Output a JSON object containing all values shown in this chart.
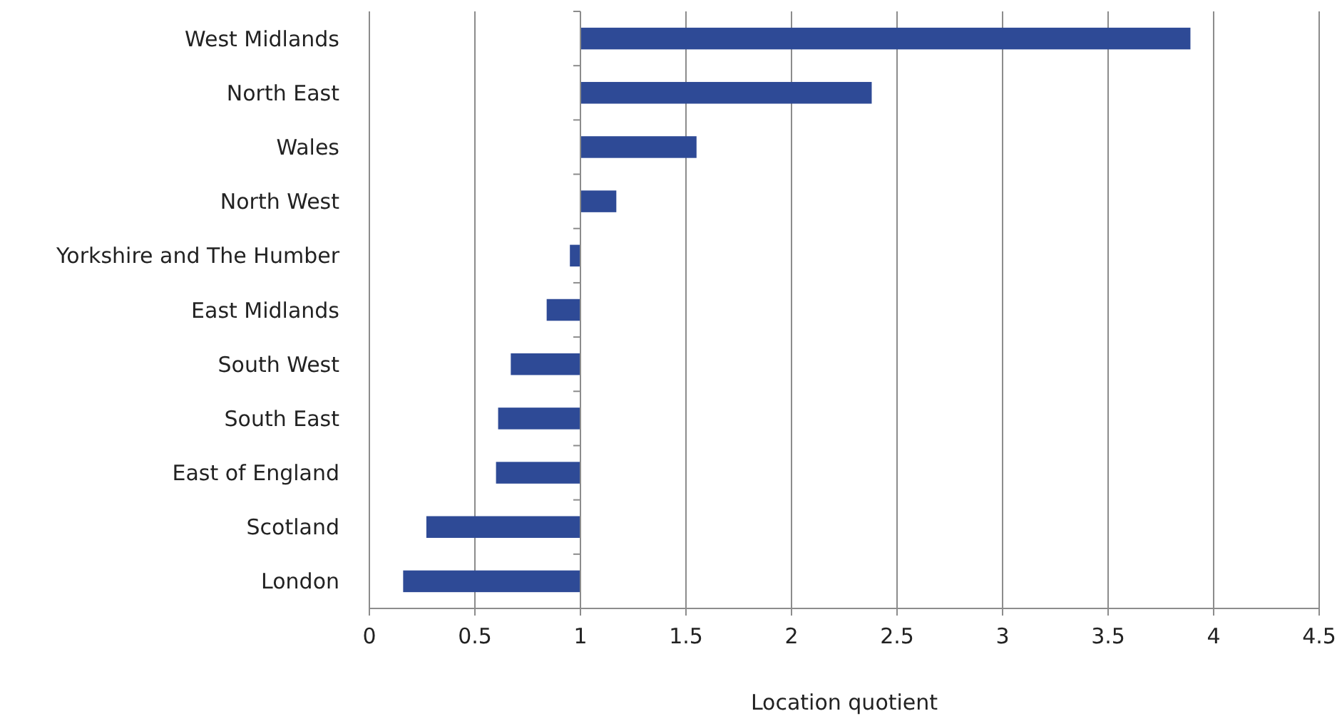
{
  "chart_data": {
    "type": "bar",
    "orientation": "horizontal",
    "xlabel": "Location quotient",
    "categories": [
      "West Midlands",
      "North East",
      "Wales",
      "North West",
      "Yorkshire and The Humber",
      "East Midlands",
      "South West",
      "South East",
      "East of England",
      "Scotland",
      "London"
    ],
    "base": [
      1,
      1,
      1,
      1,
      1,
      1,
      1,
      1,
      1,
      1,
      1
    ],
    "values": [
      2.89,
      1.38,
      0.55,
      0.17,
      -0.05,
      -0.16,
      -0.33,
      -0.39,
      -0.4,
      -0.73,
      -0.84
    ],
    "color": "#2e4a96",
    "xlim": [
      0,
      4.5
    ],
    "xticks": [
      0,
      0.5,
      1,
      1.5,
      2,
      2.5,
      3,
      3.5,
      4,
      4.5
    ],
    "grid": "x"
  }
}
